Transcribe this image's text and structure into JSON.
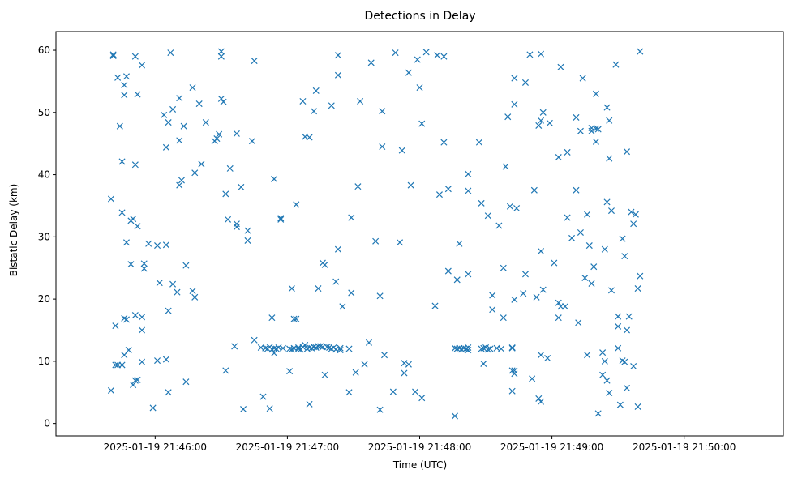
{
  "chart_data": {
    "type": "scatter",
    "title": "Detections in Delay",
    "xlabel": "Time (UTC)",
    "ylabel": "Bistatic Delay (km)",
    "marker": "x",
    "color": "#1f77b4",
    "grid": false,
    "legend": "none",
    "x_is_time": true,
    "x_ticks": [
      {
        "t": "21:46:00",
        "label": "2025-01-19 21:46:00"
      },
      {
        "t": "21:47:00",
        "label": "2025-01-19 21:47:00"
      },
      {
        "t": "21:48:00",
        "label": "2025-01-19 21:48:00"
      },
      {
        "t": "21:49:00",
        "label": "2025-01-19 21:49:00"
      },
      {
        "t": "21:50:00",
        "label": "2025-01-19 21:50:00"
      }
    ],
    "xlim": [
      "21:45:15",
      "21:50:45"
    ],
    "ylim": [
      -2,
      63
    ],
    "y_ticks": [
      0,
      10,
      20,
      30,
      40,
      50,
      60
    ],
    "points": [
      [
        "21:45:40",
        36.1
      ],
      [
        "21:45:40",
        5.3
      ],
      [
        "21:45:41",
        59.1
      ],
      [
        "21:45:41",
        59.3
      ],
      [
        "21:45:42",
        15.7
      ],
      [
        "21:45:42",
        9.4
      ],
      [
        "21:45:43",
        55.6
      ],
      [
        "21:45:43",
        9.4
      ],
      [
        "21:45:44",
        47.8
      ],
      [
        "21:45:45",
        42.1
      ],
      [
        "21:45:45",
        33.9
      ],
      [
        "21:45:45",
        9.4
      ],
      [
        "21:45:46",
        54.4
      ],
      [
        "21:45:46",
        52.8
      ],
      [
        "21:45:46",
        16.9
      ],
      [
        "21:45:46",
        11.0
      ],
      [
        "21:45:47",
        55.8
      ],
      [
        "21:45:47",
        29.1
      ],
      [
        "21:45:47",
        16.7
      ],
      [
        "21:45:48",
        11.8
      ],
      [
        "21:45:49",
        25.6
      ],
      [
        "21:45:49",
        32.6
      ],
      [
        "21:45:50",
        32.9
      ],
      [
        "21:45:50",
        6.2
      ],
      [
        "21:45:51",
        41.6
      ],
      [
        "21:45:51",
        59.0
      ],
      [
        "21:45:51",
        17.4
      ],
      [
        "21:45:51",
        6.9
      ],
      [
        "21:45:52",
        52.9
      ],
      [
        "21:45:52",
        31.7
      ],
      [
        "21:45:52",
        7.0
      ],
      [
        "21:45:54",
        57.6
      ],
      [
        "21:45:54",
        17.1
      ],
      [
        "21:45:54",
        15.0
      ],
      [
        "21:45:54",
        9.9
      ],
      [
        "21:45:55",
        25.7
      ],
      [
        "21:45:55",
        24.9
      ],
      [
        "21:45:57",
        28.9
      ],
      [
        "21:45:59",
        2.5
      ],
      [
        "21:46:01",
        10.1
      ],
      [
        "21:46:01",
        28.6
      ],
      [
        "21:46:02",
        22.6
      ],
      [
        "21:46:04",
        49.6
      ],
      [
        "21:46:05",
        44.4
      ],
      [
        "21:46:05",
        28.7
      ],
      [
        "21:46:05",
        10.3
      ],
      [
        "21:46:06",
        18.1
      ],
      [
        "21:46:06",
        48.4
      ],
      [
        "21:46:06",
        5.0
      ],
      [
        "21:46:07",
        59.6
      ],
      [
        "21:46:08",
        50.5
      ],
      [
        "21:46:08",
        22.4
      ],
      [
        "21:46:10",
        21.1
      ],
      [
        "21:46:11",
        45.5
      ],
      [
        "21:46:11",
        38.3
      ],
      [
        "21:46:11",
        52.3
      ],
      [
        "21:46:12",
        39.1
      ],
      [
        "21:46:13",
        47.8
      ],
      [
        "21:46:14",
        25.4
      ],
      [
        "21:46:14",
        6.7
      ],
      [
        "21:46:17",
        54.0
      ],
      [
        "21:46:17",
        21.3
      ],
      [
        "21:46:18",
        20.3
      ],
      [
        "21:46:18",
        40.3
      ],
      [
        "21:46:20",
        51.4
      ],
      [
        "21:46:21",
        41.7
      ],
      [
        "21:46:23",
        48.4
      ],
      [
        "21:46:27",
        45.4
      ],
      [
        "21:46:28",
        45.8
      ],
      [
        "21:46:29",
        46.5
      ],
      [
        "21:46:30",
        59.8
      ],
      [
        "21:46:30",
        59.0
      ],
      [
        "21:46:30",
        52.2
      ],
      [
        "21:46:31",
        51.7
      ],
      [
        "21:46:32",
        36.9
      ],
      [
        "21:46:32",
        8.5
      ],
      [
        "21:46:33",
        32.8
      ],
      [
        "21:46:34",
        41.0
      ],
      [
        "21:46:36",
        12.4
      ],
      [
        "21:46:37",
        46.6
      ],
      [
        "21:46:37",
        32.1
      ],
      [
        "21:46:37",
        31.6
      ],
      [
        "21:46:39",
        38.0
      ],
      [
        "21:46:40",
        2.3
      ],
      [
        "21:46:42",
        29.4
      ],
      [
        "21:46:42",
        31.0
      ],
      [
        "21:46:44",
        45.4
      ],
      [
        "21:46:45",
        58.3
      ],
      [
        "21:46:45",
        13.4
      ],
      [
        "21:46:48",
        12.2
      ],
      [
        "21:46:49",
        4.3
      ],
      [
        "21:46:50",
        12.1
      ],
      [
        "21:46:51",
        12.0
      ],
      [
        "21:46:52",
        12.3
      ],
      [
        "21:46:52",
        2.4
      ],
      [
        "21:46:53",
        17.0
      ],
      [
        "21:46:53",
        11.9
      ],
      [
        "21:46:54",
        12.1
      ],
      [
        "21:46:54",
        39.3
      ],
      [
        "21:46:54",
        11.3
      ],
      [
        "21:46:55",
        12.0
      ],
      [
        "21:46:56",
        12.2
      ],
      [
        "21:46:57",
        32.8
      ],
      [
        "21:46:57",
        33.0
      ],
      [
        "21:46:58",
        12.1
      ],
      [
        "21:47:01",
        8.4
      ],
      [
        "21:47:01",
        12.0
      ],
      [
        "21:47:02",
        21.7
      ],
      [
        "21:47:02",
        11.9
      ],
      [
        "21:47:03",
        12.1
      ],
      [
        "21:47:03",
        16.8
      ],
      [
        "21:47:04",
        35.2
      ],
      [
        "21:47:04",
        16.8
      ],
      [
        "21:47:05",
        12.0
      ],
      [
        "21:47:05",
        12.2
      ],
      [
        "21:47:06",
        11.9
      ],
      [
        "21:47:07",
        51.8
      ],
      [
        "21:47:07",
        12.3
      ],
      [
        "21:47:08",
        46.1
      ],
      [
        "21:47:08",
        12.6
      ],
      [
        "21:47:09",
        12.0
      ],
      [
        "21:47:10",
        3.1
      ],
      [
        "21:47:10",
        12.2
      ],
      [
        "21:47:10",
        46.0
      ],
      [
        "21:47:11",
        12.1
      ],
      [
        "21:47:12",
        12.3
      ],
      [
        "21:47:12",
        50.2
      ],
      [
        "21:47:13",
        12.2
      ],
      [
        "21:47:13",
        53.5
      ],
      [
        "21:47:14",
        12.4
      ],
      [
        "21:47:14",
        21.7
      ],
      [
        "21:47:15",
        12.4
      ],
      [
        "21:47:16",
        25.8
      ],
      [
        "21:47:16",
        12.3
      ],
      [
        "21:47:17",
        25.5
      ],
      [
        "21:47:17",
        7.8
      ],
      [
        "21:47:18",
        12.3
      ],
      [
        "21:47:19",
        12.2
      ],
      [
        "21:47:20",
        51.1
      ],
      [
        "21:47:20",
        12.0
      ],
      [
        "21:47:21",
        12.2
      ],
      [
        "21:47:22",
        22.8
      ],
      [
        "21:47:22",
        11.9
      ],
      [
        "21:47:23",
        28.0
      ],
      [
        "21:47:23",
        56.0
      ],
      [
        "21:47:23",
        59.2
      ],
      [
        "21:47:24",
        12.1
      ],
      [
        "21:47:24",
        11.8
      ],
      [
        "21:47:25",
        18.8
      ],
      [
        "21:47:28",
        5.0
      ],
      [
        "21:47:28",
        12.0
      ],
      [
        "21:47:29",
        33.1
      ],
      [
        "21:47:29",
        21.0
      ],
      [
        "21:47:31",
        8.2
      ],
      [
        "21:47:32",
        38.1
      ],
      [
        "21:47:33",
        51.8
      ],
      [
        "21:47:35",
        9.5
      ],
      [
        "21:47:37",
        13.0
      ],
      [
        "21:47:38",
        58.0
      ],
      [
        "21:47:40",
        29.3
      ],
      [
        "21:47:42",
        20.5
      ],
      [
        "21:47:42",
        2.2
      ],
      [
        "21:47:43",
        50.2
      ],
      [
        "21:47:43",
        44.5
      ],
      [
        "21:47:44",
        11.0
      ],
      [
        "21:47:48",
        5.1
      ],
      [
        "21:47:49",
        59.6
      ],
      [
        "21:47:51",
        29.1
      ],
      [
        "21:47:52",
        43.9
      ],
      [
        "21:47:53",
        8.1
      ],
      [
        "21:47:53",
        9.7
      ],
      [
        "21:47:55",
        56.4
      ],
      [
        "21:47:55",
        9.5
      ],
      [
        "21:47:56",
        38.3
      ],
      [
        "21:47:58",
        5.1
      ],
      [
        "21:47:59",
        58.5
      ],
      [
        "21:48:00",
        54.0
      ],
      [
        "21:48:01",
        48.2
      ],
      [
        "21:48:01",
        4.1
      ],
      [
        "21:48:03",
        59.7
      ],
      [
        "21:48:07",
        18.9
      ],
      [
        "21:48:08",
        59.2
      ],
      [
        "21:48:09",
        36.8
      ],
      [
        "21:48:11",
        59.0
      ],
      [
        "21:48:11",
        45.2
      ],
      [
        "21:48:13",
        24.5
      ],
      [
        "21:48:13",
        37.7
      ],
      [
        "21:48:16",
        12.1
      ],
      [
        "21:48:16",
        1.2
      ],
      [
        "21:48:17",
        12.0
      ],
      [
        "21:48:17",
        23.1
      ],
      [
        "21:48:18",
        12.1
      ],
      [
        "21:48:18",
        28.9
      ],
      [
        "21:48:19",
        11.9
      ],
      [
        "21:48:20",
        12.1
      ],
      [
        "21:48:21",
        12.0
      ],
      [
        "21:48:22",
        12.2
      ],
      [
        "21:48:22",
        40.1
      ],
      [
        "21:48:22",
        37.4
      ],
      [
        "21:48:22",
        11.8
      ],
      [
        "21:48:22",
        24.0
      ],
      [
        "21:48:27",
        45.2
      ],
      [
        "21:48:28",
        35.4
      ],
      [
        "21:48:28",
        12.0
      ],
      [
        "21:48:29",
        12.1
      ],
      [
        "21:48:29",
        9.6
      ],
      [
        "21:48:30",
        12.2
      ],
      [
        "21:48:31",
        33.4
      ],
      [
        "21:48:31",
        11.9
      ],
      [
        "21:48:32",
        12.0
      ],
      [
        "21:48:33",
        20.6
      ],
      [
        "21:48:33",
        18.3
      ],
      [
        "21:48:35",
        12.1
      ],
      [
        "21:48:36",
        31.8
      ],
      [
        "21:48:37",
        12.0
      ],
      [
        "21:48:38",
        25.0
      ],
      [
        "21:48:38",
        17.0
      ],
      [
        "21:48:39",
        41.3
      ],
      [
        "21:48:40",
        49.3
      ],
      [
        "21:48:41",
        34.9
      ],
      [
        "21:48:42",
        5.2
      ],
      [
        "21:48:42",
        8.5
      ],
      [
        "21:48:42",
        12.1
      ],
      [
        "21:48:42",
        12.2
      ],
      [
        "21:48:43",
        8.0
      ],
      [
        "21:48:43",
        55.5
      ],
      [
        "21:48:43",
        51.3
      ],
      [
        "21:48:43",
        19.9
      ],
      [
        "21:48:43",
        8.5
      ],
      [
        "21:48:44",
        34.6
      ],
      [
        "21:48:47",
        20.9
      ],
      [
        "21:48:48",
        54.8
      ],
      [
        "21:48:48",
        24.0
      ],
      [
        "21:48:50",
        59.3
      ],
      [
        "21:48:51",
        7.2
      ],
      [
        "21:48:52",
        37.5
      ],
      [
        "21:48:53",
        20.3
      ],
      [
        "21:48:54",
        47.9
      ],
      [
        "21:48:54",
        4.0
      ],
      [
        "21:48:55",
        48.7
      ],
      [
        "21:48:55",
        59.4
      ],
      [
        "21:48:55",
        27.7
      ],
      [
        "21:48:55",
        3.5
      ],
      [
        "21:48:55",
        11.0
      ],
      [
        "21:48:56",
        50.0
      ],
      [
        "21:48:56",
        21.5
      ],
      [
        "21:48:58",
        10.5
      ],
      [
        "21:48:59",
        48.3
      ],
      [
        "21:49:01",
        25.8
      ],
      [
        "21:49:03",
        42.8
      ],
      [
        "21:49:03",
        19.4
      ],
      [
        "21:49:03",
        17.0
      ],
      [
        "21:49:04",
        57.3
      ],
      [
        "21:49:04",
        18.8
      ],
      [
        "21:49:06",
        18.8
      ],
      [
        "21:49:07",
        43.6
      ],
      [
        "21:49:07",
        33.1
      ],
      [
        "21:49:09",
        29.8
      ],
      [
        "21:49:11",
        37.5
      ],
      [
        "21:49:11",
        49.2
      ],
      [
        "21:49:12",
        16.2
      ],
      [
        "21:49:13",
        30.7
      ],
      [
        "21:49:13",
        47.0
      ],
      [
        "21:49:14",
        55.5
      ],
      [
        "21:49:15",
        23.4
      ],
      [
        "21:49:16",
        33.6
      ],
      [
        "21:49:16",
        11.0
      ],
      [
        "21:49:17",
        28.6
      ],
      [
        "21:49:18",
        22.5
      ],
      [
        "21:49:18",
        47.0
      ],
      [
        "21:49:18",
        47.5
      ],
      [
        "21:49:19",
        25.2
      ],
      [
        "21:49:20",
        53.0
      ],
      [
        "21:49:20",
        47.4
      ],
      [
        "21:49:20",
        45.3
      ],
      [
        "21:49:21",
        1.6
      ],
      [
        "21:49:21",
        47.3
      ],
      [
        "21:49:23",
        7.8
      ],
      [
        "21:49:23",
        11.4
      ],
      [
        "21:49:24",
        28.0
      ],
      [
        "21:49:24",
        10.0
      ],
      [
        "21:49:25",
        35.6
      ],
      [
        "21:49:25",
        50.8
      ],
      [
        "21:49:25",
        6.9
      ],
      [
        "21:49:26",
        48.7
      ],
      [
        "21:49:26",
        42.6
      ],
      [
        "21:49:26",
        4.9
      ],
      [
        "21:49:27",
        34.2
      ],
      [
        "21:49:27",
        21.4
      ],
      [
        "21:49:29",
        57.7
      ],
      [
        "21:49:30",
        12.1
      ],
      [
        "21:49:30",
        17.2
      ],
      [
        "21:49:30",
        15.6
      ],
      [
        "21:49:31",
        3.0
      ],
      [
        "21:49:32",
        29.7
      ],
      [
        "21:49:32",
        10.1
      ],
      [
        "21:49:33",
        9.9
      ],
      [
        "21:49:33",
        26.9
      ],
      [
        "21:49:34",
        43.7
      ],
      [
        "21:49:34",
        5.7
      ],
      [
        "21:49:34",
        15.0
      ],
      [
        "21:49:35",
        17.2
      ],
      [
        "21:49:36",
        34.0
      ],
      [
        "21:49:37",
        32.1
      ],
      [
        "21:49:37",
        9.2
      ],
      [
        "21:49:38",
        33.6
      ],
      [
        "21:49:39",
        21.7
      ],
      [
        "21:49:39",
        2.7
      ],
      [
        "21:49:40",
        23.7
      ],
      [
        "21:49:40",
        59.8
      ]
    ]
  }
}
